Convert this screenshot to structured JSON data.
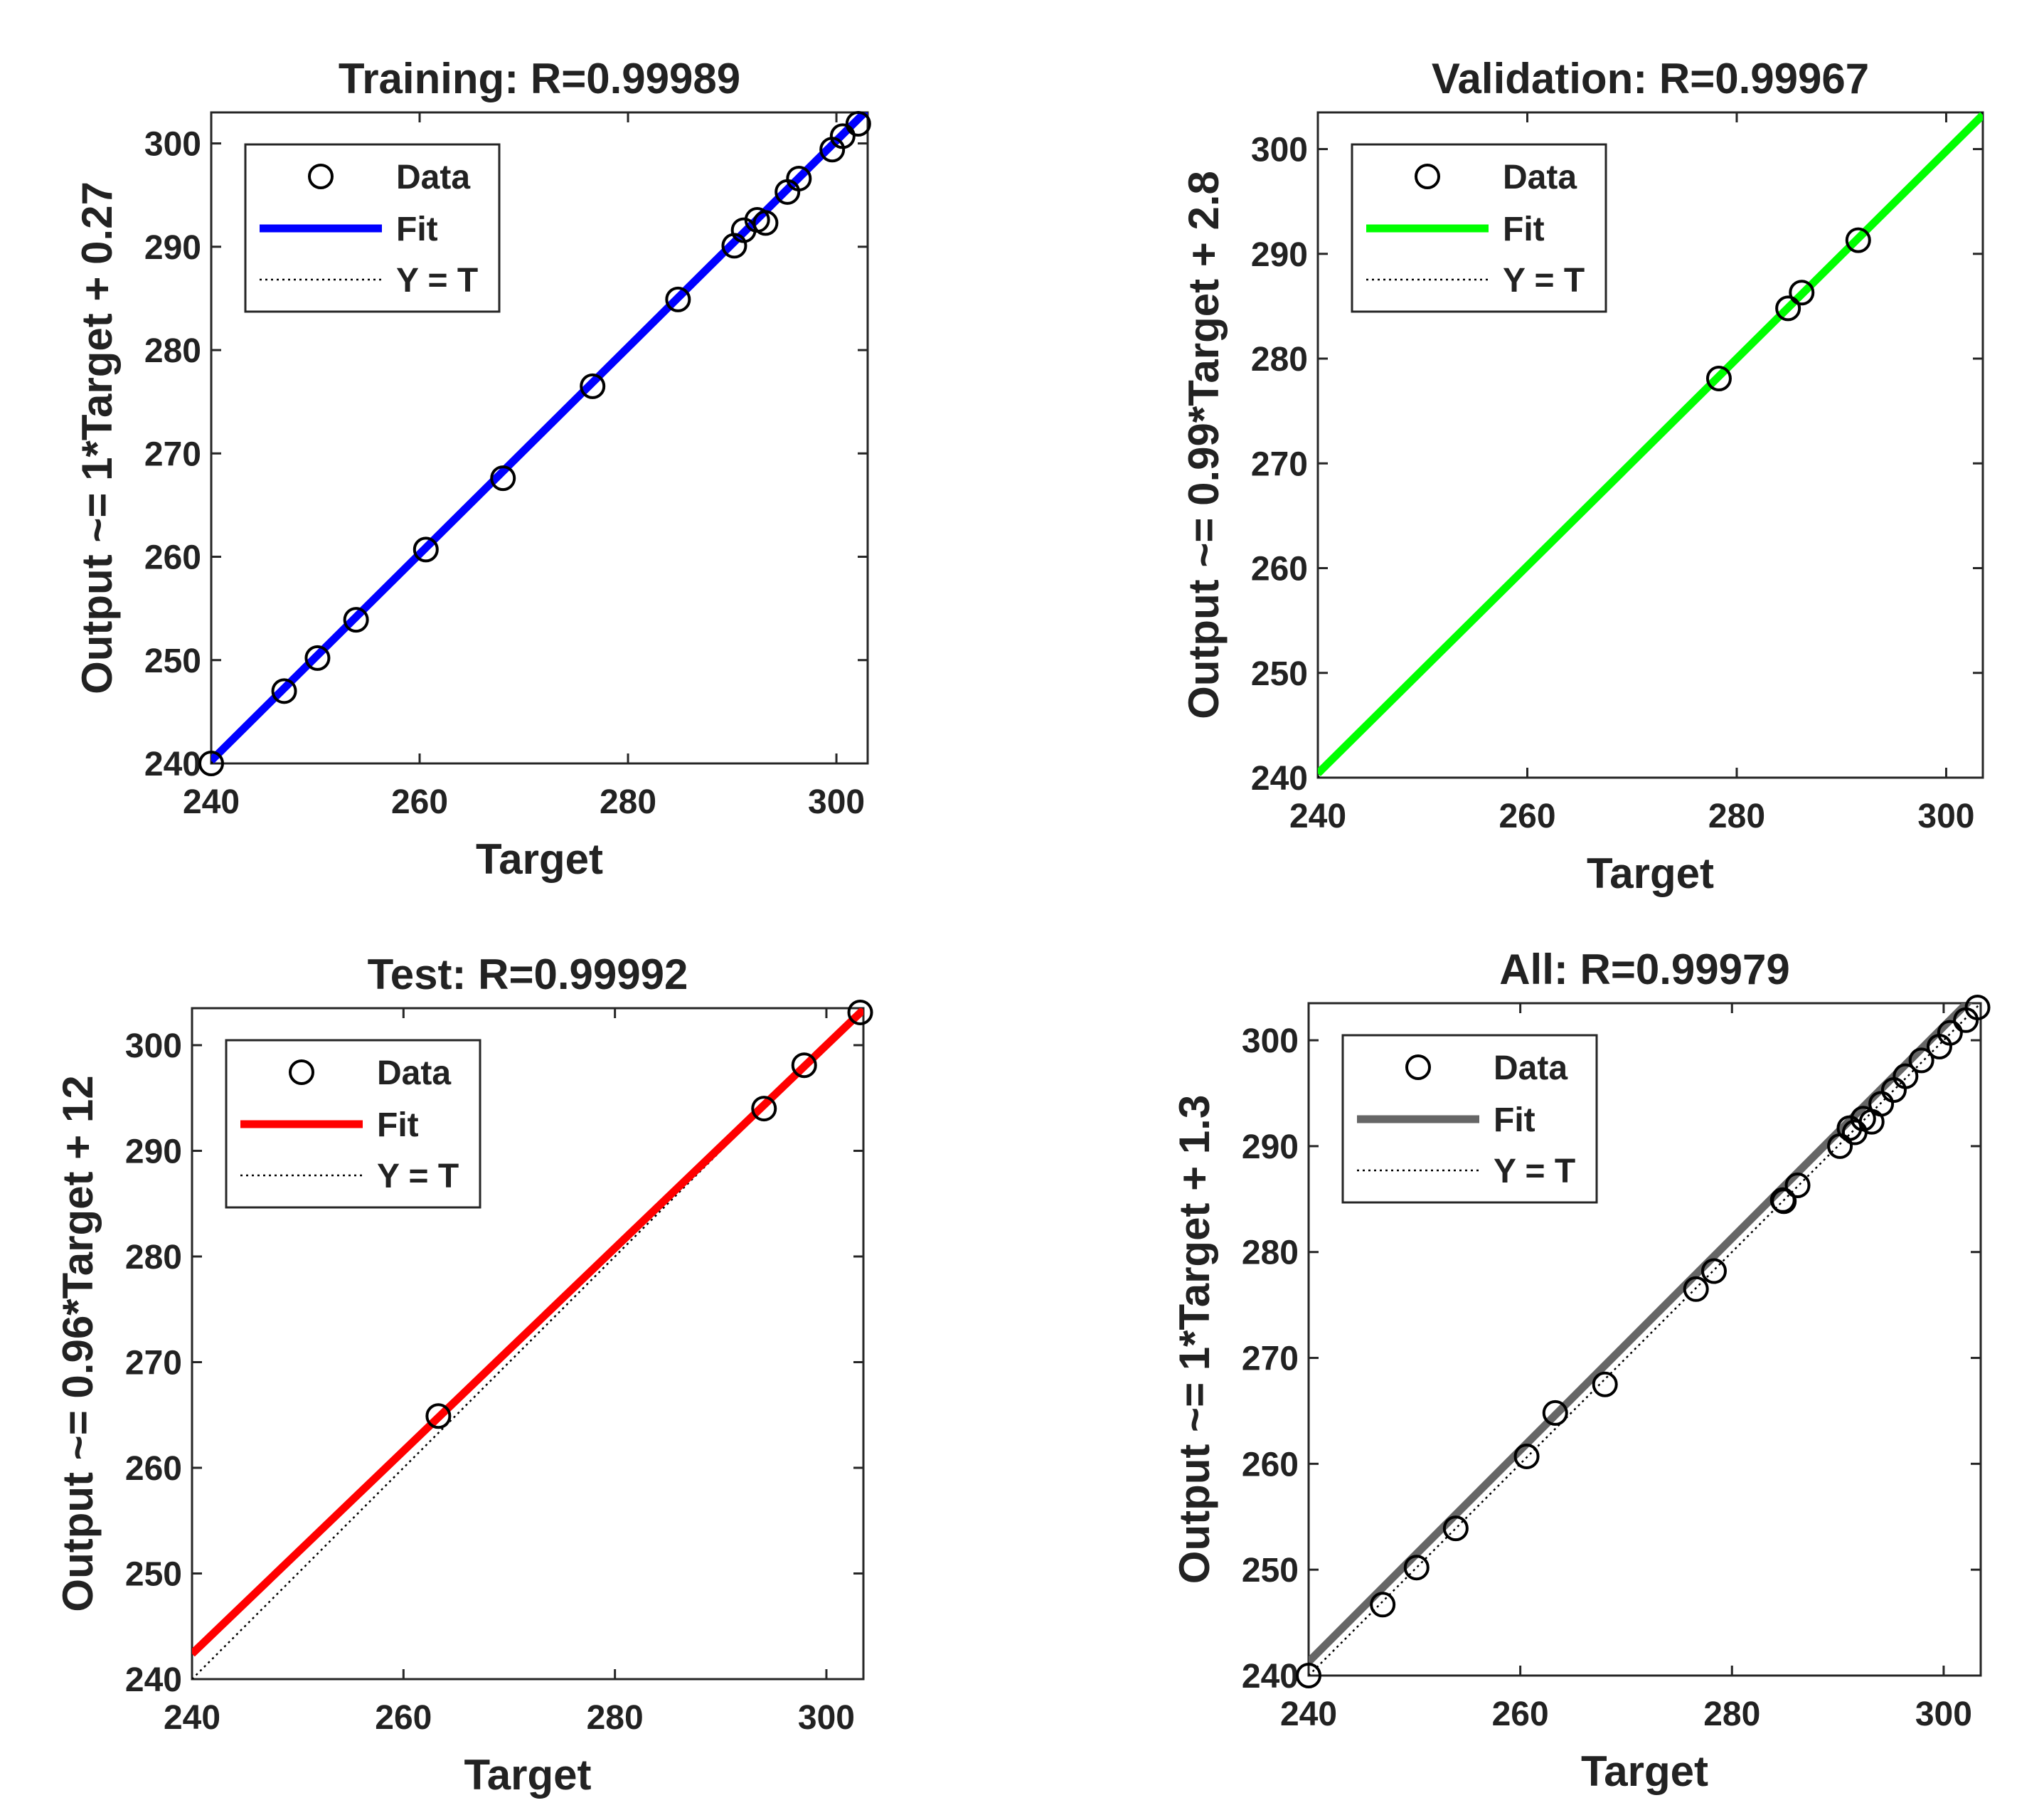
{
  "chart_data": [
    {
      "type": "scatter",
      "title": "Training: R=0.99989",
      "xlabel": "Target",
      "ylabel": "Output ~= 1*Target + 0.27",
      "xlim": [
        240,
        303
      ],
      "ylim": [
        240,
        303
      ],
      "xticks": [
        240,
        260,
        280,
        300
      ],
      "yticks": [
        240,
        250,
        260,
        270,
        280,
        290,
        300
      ],
      "fit_color": "#0000ff",
      "fit": {
        "slope": 1,
        "intercept": 0.27
      },
      "legend": {
        "position": "top-left",
        "entries": [
          "Data",
          "Fit",
          "Y = T"
        ]
      },
      "points": [
        [
          240,
          240
        ],
        [
          247,
          247
        ],
        [
          250.2,
          250.2
        ],
        [
          253.9,
          253.9
        ],
        [
          260.6,
          260.7
        ],
        [
          268,
          267.6
        ],
        [
          276.6,
          276.5
        ],
        [
          284.8,
          284.9
        ],
        [
          290.2,
          290.1
        ],
        [
          291.1,
          291.6
        ],
        [
          292.4,
          292.6
        ],
        [
          293.2,
          292.3
        ],
        [
          295.3,
          295.3
        ],
        [
          296.4,
          296.6
        ],
        [
          299.6,
          299.4
        ],
        [
          300.6,
          300.7
        ],
        [
          302.1,
          301.9
        ]
      ]
    },
    {
      "type": "scatter",
      "title": "Validation: R=0.99967",
      "xlabel": "Target",
      "ylabel": "Output ~= 0.99*Target + 2.8",
      "xlim": [
        240,
        303.5
      ],
      "ylim": [
        240,
        303.5
      ],
      "xticks": [
        240,
        260,
        280,
        300
      ],
      "yticks": [
        240,
        250,
        260,
        270,
        280,
        290,
        300
      ],
      "fit_color": "#00ff00",
      "fit": {
        "slope": 0.99,
        "intercept": 2.8
      },
      "legend": {
        "position": "top-left",
        "entries": [
          "Data",
          "Fit",
          "Y = T"
        ]
      },
      "points": [
        [
          278.3,
          278.1
        ],
        [
          284.9,
          284.8
        ],
        [
          286.2,
          286.3
        ],
        [
          291.6,
          291.3
        ]
      ]
    },
    {
      "type": "scatter",
      "title": "Test: R=0.99992",
      "xlabel": "Target",
      "ylabel": "Output ~= 0.96*Target + 12",
      "xlim": [
        240,
        303.5
      ],
      "ylim": [
        240,
        303.5
      ],
      "xticks": [
        240,
        260,
        280,
        300
      ],
      "yticks": [
        240,
        250,
        260,
        270,
        280,
        290,
        300
      ],
      "fit_color": "#ff0000",
      "fit": {
        "slope": 0.96,
        "intercept": 12
      },
      "legend": {
        "position": "top-left",
        "entries": [
          "Data",
          "Fit",
          "Y = T"
        ]
      },
      "points": [
        [
          263.3,
          264.9
        ],
        [
          294.1,
          294
        ],
        [
          297.9,
          298.1
        ],
        [
          303.2,
          303.1
        ]
      ]
    },
    {
      "type": "scatter",
      "title": "All: R=0.99979",
      "xlabel": "Target",
      "ylabel": "Output ~= 1*Target + 1.3",
      "xlim": [
        240,
        303.5
      ],
      "ylim": [
        240,
        303.5
      ],
      "xticks": [
        240,
        260,
        280,
        300
      ],
      "yticks": [
        240,
        250,
        260,
        270,
        280,
        290,
        300
      ],
      "fit_color": "#666666",
      "fit": {
        "slope": 1,
        "intercept": 1.3
      },
      "legend": {
        "position": "top-left",
        "entries": [
          "Data",
          "Fit",
          "Y = T"
        ]
      },
      "points": [
        [
          240,
          240
        ],
        [
          247,
          246.7
        ],
        [
          250.2,
          250.2
        ],
        [
          253.9,
          253.9
        ],
        [
          260.6,
          260.7
        ],
        [
          263.3,
          264.8
        ],
        [
          268,
          267.5
        ],
        [
          276.6,
          276.5
        ],
        [
          278.3,
          278.2
        ],
        [
          284.8,
          284.9
        ],
        [
          284.9,
          284.8
        ],
        [
          286.2,
          286.3
        ],
        [
          290.2,
          290
        ],
        [
          291.1,
          291.7
        ],
        [
          291.6,
          291.3
        ],
        [
          292.4,
          292.6
        ],
        [
          293.2,
          292.3
        ],
        [
          294.1,
          294
        ],
        [
          295.3,
          295.3
        ],
        [
          296.4,
          296.6
        ],
        [
          297.9,
          298.1
        ],
        [
          299.6,
          299.4
        ],
        [
          300.6,
          300.7
        ],
        [
          302.1,
          301.9
        ],
        [
          303.2,
          303.1
        ]
      ]
    }
  ]
}
